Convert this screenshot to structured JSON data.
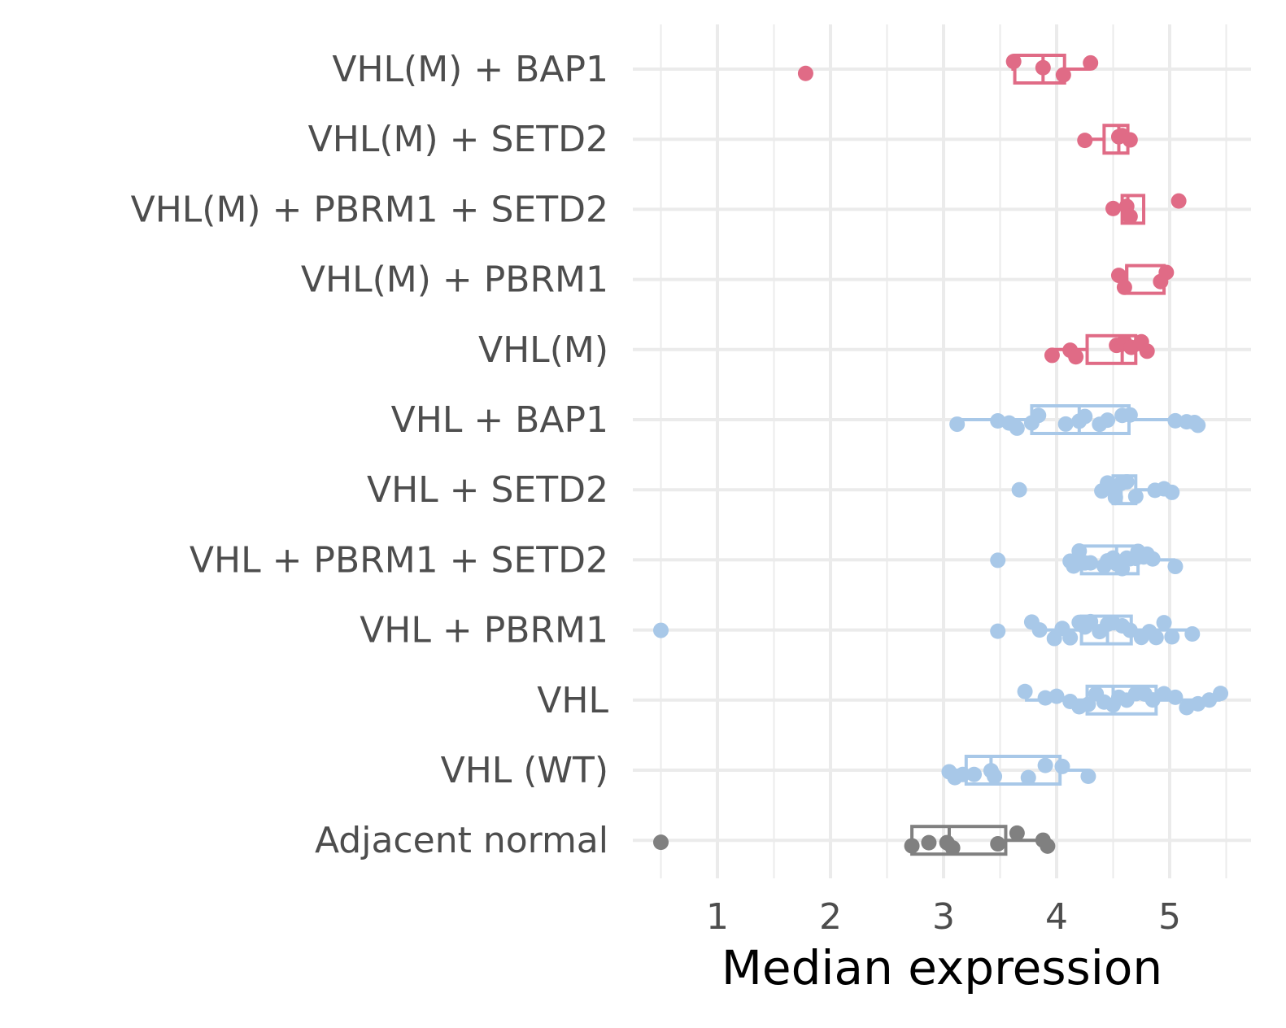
{
  "chart_data": {
    "type": "boxplot",
    "orientation": "horizontal",
    "xlabel": "Median expression",
    "ylabel": "",
    "title": "",
    "xlim": [
      0.45,
      5.68
    ],
    "xticks": [
      1,
      2,
      3,
      4,
      5
    ],
    "xtick_labels": [
      "1",
      "2",
      "3",
      "4",
      "5"
    ],
    "grid": true,
    "legend": "none",
    "colors": {
      "mutant": "#e06b86",
      "wildtype_tumor": "#a8c8e8",
      "normal": "#808080"
    },
    "categories": [
      {
        "label": "VHL(M) + BAP1",
        "color": "#e06b86",
        "box": {
          "min": 3.6,
          "q1": 3.63,
          "median": 3.88,
          "q3": 4.07,
          "max": 4.3
        },
        "points": [
          1.78,
          3.62,
          3.88,
          4.06,
          4.3
        ]
      },
      {
        "label": "VHL(M) + SETD2",
        "color": "#e06b86",
        "box": {
          "min": 4.25,
          "q1": 4.42,
          "median": 4.55,
          "q3": 4.63,
          "max": 4.65
        },
        "points": [
          4.25,
          4.55,
          4.58,
          4.65
        ]
      },
      {
        "label": "VHL(M) + PBRM1 + SETD2",
        "color": "#e06b86",
        "box": {
          "min": 4.5,
          "q1": 4.58,
          "median": 4.63,
          "q3": 4.77,
          "max": 4.77
        },
        "points": [
          4.5,
          4.62,
          4.65,
          5.08
        ]
      },
      {
        "label": "VHL(M) + PBRM1",
        "color": "#e06b86",
        "box": {
          "min": 4.55,
          "q1": 4.62,
          "median": 4.62,
          "q3": 4.95,
          "max": 4.97
        },
        "points": [
          4.55,
          4.6,
          4.92,
          4.97
        ]
      },
      {
        "label": "VHL(M)",
        "color": "#e06b86",
        "box": {
          "min": 3.96,
          "q1": 4.27,
          "median": 4.58,
          "q3": 4.7,
          "max": 4.8
        },
        "points": [
          3.96,
          4.12,
          4.17,
          4.53,
          4.58,
          4.6,
          4.66,
          4.75,
          4.8
        ]
      },
      {
        "label": "VHL + BAP1",
        "color": "#a8c8e8",
        "box": {
          "min": 3.12,
          "q1": 3.78,
          "median": 4.2,
          "q3": 4.64,
          "max": 5.25
        },
        "points": [
          3.12,
          3.48,
          3.58,
          3.65,
          3.78,
          3.84,
          4.08,
          4.2,
          4.25,
          4.38,
          4.45,
          4.58,
          4.65,
          5.05,
          5.15,
          5.22,
          5.25
        ]
      },
      {
        "label": "VHL + SETD2",
        "color": "#a8c8e8",
        "box": {
          "min": 4.45,
          "q1": 4.5,
          "median": 4.57,
          "q3": 4.7,
          "max": 5.02
        },
        "points": [
          3.67,
          4.4,
          4.45,
          4.5,
          4.52,
          4.57,
          4.62,
          4.7,
          4.87,
          4.95,
          5.02
        ]
      },
      {
        "label": "VHL + PBRM1 + SETD2",
        "color": "#a8c8e8",
        "box": {
          "min": 4.15,
          "q1": 4.22,
          "median": 4.53,
          "q3": 4.72,
          "max": 5.05
        },
        "points": [
          3.48,
          4.12,
          4.15,
          4.2,
          4.25,
          4.3,
          4.42,
          4.45,
          4.5,
          4.53,
          4.58,
          4.62,
          4.65,
          4.7,
          4.72,
          4.77,
          4.8,
          4.85,
          5.05
        ]
      },
      {
        "label": "VHL + PBRM1",
        "color": "#a8c8e8",
        "box": {
          "min": 3.82,
          "q1": 4.22,
          "median": 4.45,
          "q3": 4.66,
          "max": 5.2
        },
        "points": [
          0.5,
          3.48,
          3.78,
          3.85,
          3.98,
          4.05,
          4.12,
          4.2,
          4.25,
          4.3,
          4.38,
          4.45,
          4.5,
          4.58,
          4.65,
          4.75,
          4.82,
          4.88,
          4.95,
          5.02,
          5.2
        ]
      },
      {
        "label": "VHL",
        "color": "#a8c8e8",
        "box": {
          "min": 3.72,
          "q1": 4.27,
          "median": 4.5,
          "q3": 4.88,
          "max": 5.45
        },
        "points": [
          3.72,
          3.9,
          4.0,
          4.12,
          4.2,
          4.28,
          4.35,
          4.42,
          4.5,
          4.55,
          4.62,
          4.7,
          4.78,
          4.85,
          4.95,
          5.05,
          5.15,
          5.25,
          5.35,
          5.45
        ]
      },
      {
        "label": "VHL (WT)",
        "color": "#a8c8e8",
        "box": {
          "min": 3.05,
          "q1": 3.2,
          "median": 3.42,
          "q3": 4.03,
          "max": 4.28
        },
        "points": [
          3.05,
          3.1,
          3.17,
          3.27,
          3.42,
          3.45,
          3.75,
          3.9,
          4.05,
          4.28
        ]
      },
      {
        "label": "Adjacent normal",
        "color": "#808080",
        "box": {
          "min": 2.72,
          "q1": 2.72,
          "median": 3.05,
          "q3": 3.55,
          "max": 3.9
        },
        "points": [
          0.5,
          2.72,
          2.87,
          3.03,
          3.08,
          3.48,
          3.65,
          3.88,
          3.92
        ]
      }
    ]
  }
}
